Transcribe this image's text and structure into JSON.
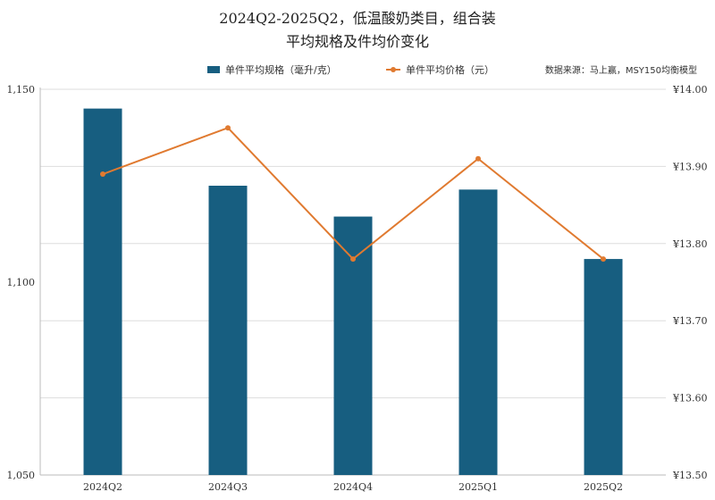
{
  "chart_data": {
    "type": "bar",
    "title_line1": "2024Q2-2025Q2，低温酸奶类目，组合装",
    "title_line2": "平均规格及件均价变化",
    "categories": [
      "2024Q2",
      "2024Q3",
      "2024Q4",
      "2025Q1",
      "2025Q2"
    ],
    "series": [
      {
        "name": "单件平均规格（毫升/克）",
        "type": "bar",
        "axis": "left",
        "color": "#175e80",
        "values": [
          1145,
          1125,
          1117,
          1124,
          1106
        ]
      },
      {
        "name": "单件平均价格（元）",
        "type": "line",
        "axis": "right",
        "color": "#e07a30",
        "values": [
          13.89,
          13.95,
          13.78,
          13.91,
          13.78
        ]
      }
    ],
    "y_left": {
      "min": 1050,
      "max": 1150,
      "ticks": [
        1050,
        1100,
        1150
      ],
      "tick_labels": [
        "1,050",
        "1,100",
        "1,150"
      ]
    },
    "y_right": {
      "min": 13.5,
      "max": 14.0,
      "ticks": [
        13.5,
        13.6,
        13.7,
        13.8,
        13.9,
        14.0
      ],
      "tick_labels": [
        "¥13.50",
        "¥13.60",
        "¥13.70",
        "¥13.80",
        "¥13.90",
        "¥14.00"
      ]
    },
    "legend_position": "top",
    "source": "数据来源：马上赢，MSY150均衡模型",
    "grid": true
  }
}
